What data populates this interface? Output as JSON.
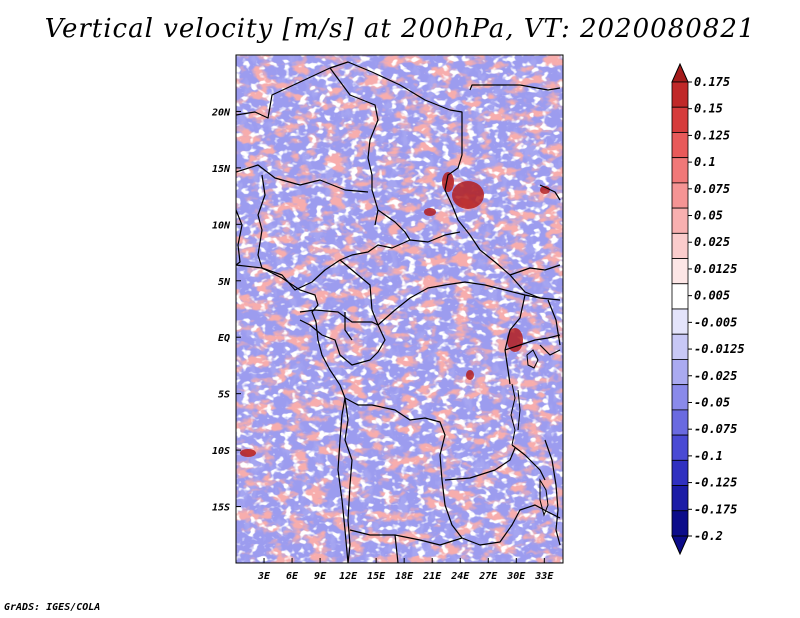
{
  "title": "Vertical velocity [m/s] at 200hPa, VT: 2020080821",
  "credit": "GrADS: IGES/COLA",
  "map": {
    "lat_labels": [
      "20N",
      "15N",
      "10N",
      "5N",
      "EQ",
      "5S",
      "10S",
      "15S"
    ],
    "lat_values": [
      20,
      15,
      10,
      5,
      0,
      -5,
      -10,
      -15
    ],
    "lon_labels": [
      "3E",
      "6E",
      "9E",
      "12E",
      "15E",
      "18E",
      "21E",
      "24E",
      "27E",
      "30E",
      "33E"
    ],
    "lon_values": [
      3,
      6,
      9,
      12,
      15,
      18,
      21,
      24,
      27,
      30,
      33
    ],
    "lon_range": [
      0,
      35
    ],
    "lat_range": [
      -20,
      25
    ],
    "field_colors": {
      "negative_strong": "#2c2cc8",
      "negative": "#7a7ae8",
      "negative_weak": "#c8c8f8",
      "neutral": "#ffffff",
      "positive_weak": "#f8c8c8",
      "positive": "#f08080",
      "positive_strong": "#b41e1e"
    }
  },
  "colorbar": {
    "labels": [
      "0.175",
      "0.15",
      "0.125",
      "0.1",
      "0.075",
      "0.05",
      "0.025",
      "0.0125",
      "0.005",
      "-0.005",
      "-0.0125",
      "-0.025",
      "-0.05",
      "-0.075",
      "-0.1",
      "-0.125",
      "-0.175",
      "-0.2"
    ],
    "colors": [
      "#a51c1c",
      "#c02828",
      "#d63c3c",
      "#e85a5a",
      "#f07878",
      "#f59494",
      "#f8b0b0",
      "#fbcccc",
      "#fde6e6",
      "#ffffff",
      "#e4e4fb",
      "#c8c8f6",
      "#aaaaf0",
      "#8a8aea",
      "#6a6ae0",
      "#4a4ad4",
      "#3030c0",
      "#1c1ca6",
      "#0c0c8a"
    ]
  }
}
